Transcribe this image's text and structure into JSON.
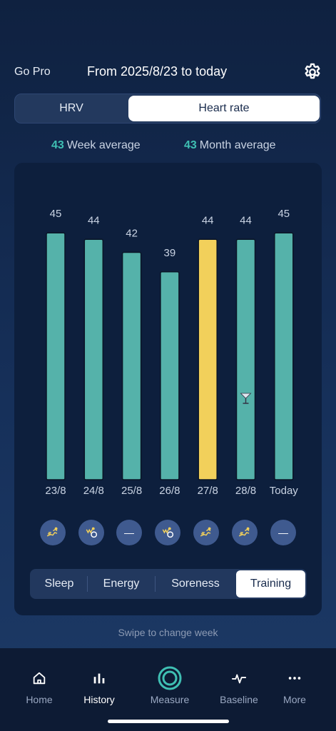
{
  "header": {
    "go_pro": "Go Pro",
    "date_range": "From 2025/8/23 to today",
    "settings_icon": "gear-icon"
  },
  "metric_toggle": {
    "options": [
      "HRV",
      "Heart rate"
    ],
    "selected": "Heart rate"
  },
  "averages": {
    "week_value": "43",
    "week_label": "Week average",
    "month_value": "43",
    "month_label": "Month average"
  },
  "chart_data": {
    "type": "bar",
    "categories": [
      "23/8",
      "24/8",
      "25/8",
      "26/8",
      "27/8",
      "28/8",
      "Today"
    ],
    "values": [
      45,
      44,
      42,
      39,
      44,
      44,
      45
    ],
    "data_labels": [
      "45",
      "44",
      "42",
      "39",
      "44",
      "44",
      "45"
    ],
    "highlight_index": 4,
    "colors": {
      "bar": "#55b2aa",
      "highlight": "#f2d05b"
    },
    "annotations": [
      {
        "category": "28/8",
        "icon": "cocktail-icon"
      }
    ],
    "ylim": [
      0,
      50
    ],
    "grid": false,
    "legend": "none"
  },
  "day_icons": [
    "running-icon",
    "cycling-icon",
    "no-activity-icon",
    "cycling-icon",
    "running-icon",
    "running-icon",
    "no-activity-icon"
  ],
  "no_activity_glyph": "—",
  "tabs": {
    "items": [
      "Sleep",
      "Energy",
      "Soreness",
      "Training"
    ],
    "active": "Training"
  },
  "swipe_hint": "Swipe to change week",
  "bottom_nav": {
    "items": [
      {
        "label": "Home",
        "icon": "home-icon"
      },
      {
        "label": "History",
        "icon": "bar-chart-icon"
      },
      {
        "label": "Measure",
        "icon": "measure-ring-icon"
      },
      {
        "label": "Baseline",
        "icon": "pulse-icon"
      },
      {
        "label": "More",
        "icon": "more-dots-icon"
      }
    ],
    "active": "History"
  },
  "colors": {
    "accent": "#3fbfb3",
    "bar": "#55b2aa",
    "highlight_bar": "#f2d05b"
  }
}
